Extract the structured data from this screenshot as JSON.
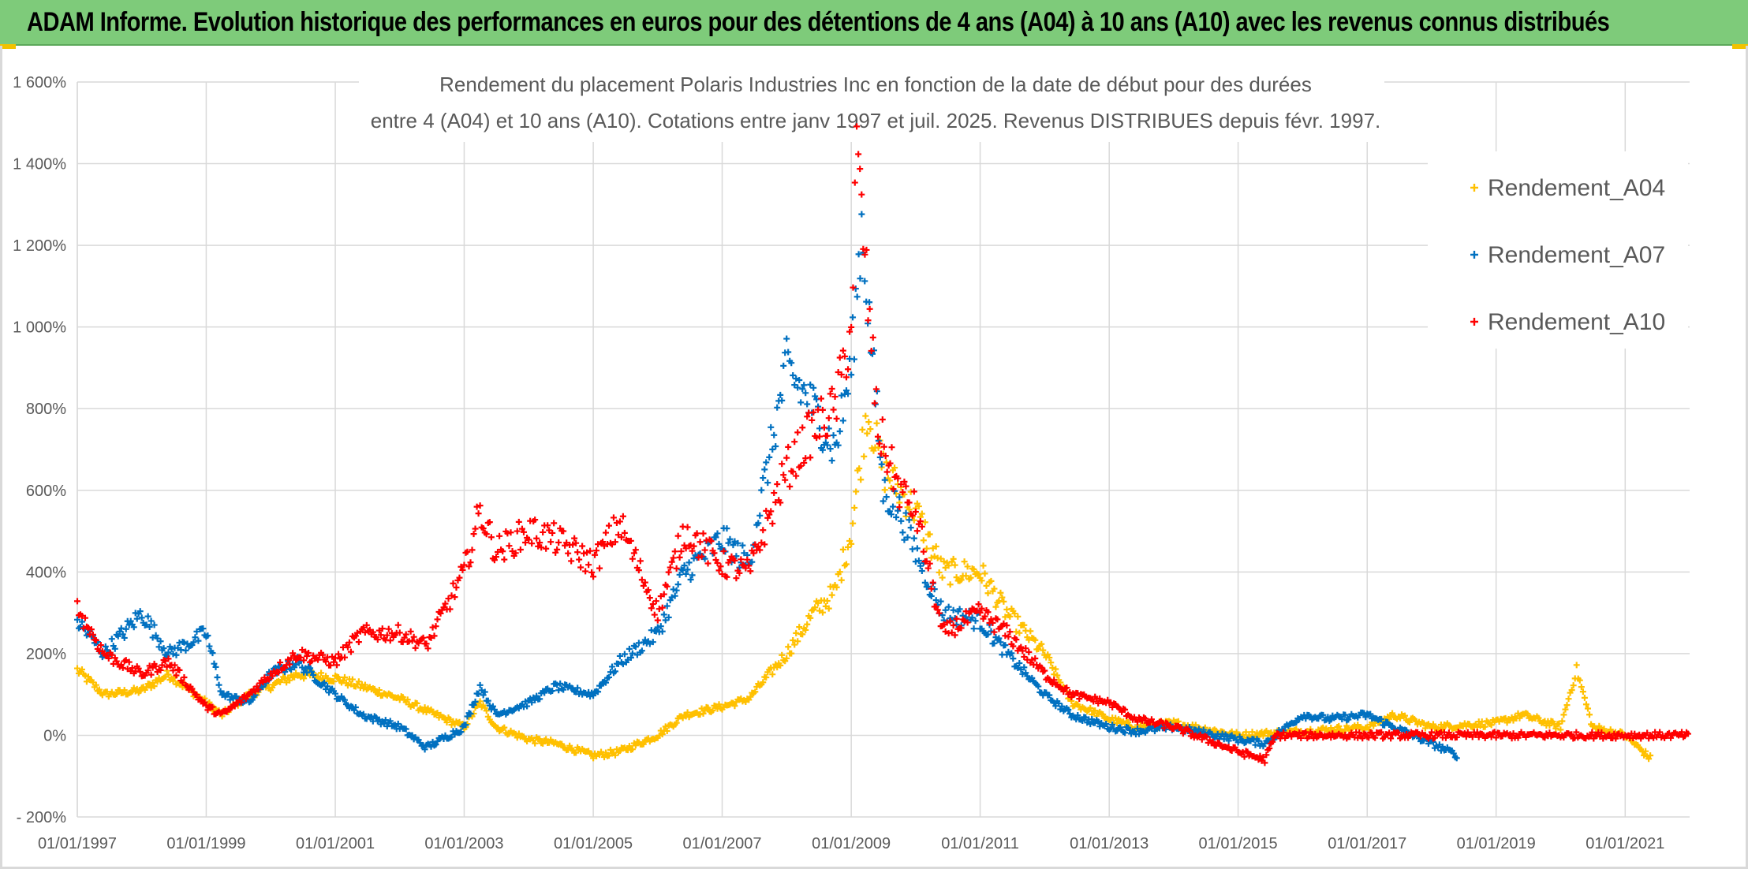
{
  "banner": {
    "title": "ADAM Informe. Evolution historique des performances en euros pour des détentions de 4 ans (A04) à 10 ans (A10) avec les revenus connus distribués"
  },
  "colors": {
    "banner_bg": "#7ecb7a",
    "A04": "#ffc000",
    "A07": "#0070c0",
    "A10": "#ff0000",
    "grid": "#d9d9d9",
    "text": "#595959"
  },
  "chart_data": {
    "type": "scatter",
    "title_line1": "Rendement du placement Polaris Industries Inc en fonction de la date de début pour des durées",
    "title_line2": "entre 4 (A04) et 10 ans (A10). Cotations entre janv 1997 et juil. 2025. Revenus DISTRIBUES depuis févr. 1997.",
    "marker": "+",
    "x_axis": {
      "type": "date",
      "min": "1997-01-01",
      "max": "2022-01-01",
      "tick_labels": [
        "01/01/1997",
        "01/01/1999",
        "01/01/2001",
        "01/01/2003",
        "01/01/2005",
        "01/01/2007",
        "01/01/2009",
        "01/01/2011",
        "01/01/2013",
        "01/01/2015",
        "01/01/2017",
        "01/01/2019",
        "01/01/2021"
      ]
    },
    "y_axis": {
      "unit": "%",
      "min": -200,
      "max": 1600,
      "tick_labels": [
        "- 200%",
        "0%",
        "200%",
        "400%",
        "600%",
        "800%",
        "1 000%",
        "1 200%",
        "1 400%",
        "1 600%"
      ],
      "tick_values": [
        -200,
        0,
        200,
        400,
        600,
        800,
        1000,
        1200,
        1400,
        1600
      ]
    },
    "grid": true,
    "legend_position": "top-right",
    "series": [
      {
        "name": "Rendement_A04",
        "color": "#ffc000",
        "points": [
          [
            "1997-01-01",
            160
          ],
          [
            "1997-06-01",
            100
          ],
          [
            "1998-01-01",
            110
          ],
          [
            "1998-06-01",
            150
          ],
          [
            "1999-01-01",
            80
          ],
          [
            "1999-04-01",
            50
          ],
          [
            "1999-09-01",
            100
          ],
          [
            "2000-01-01",
            120
          ],
          [
            "2000-06-01",
            150
          ],
          [
            "2001-01-01",
            140
          ],
          [
            "2001-06-01",
            120
          ],
          [
            "2002-01-01",
            90
          ],
          [
            "2002-06-01",
            60
          ],
          [
            "2003-01-01",
            20
          ],
          [
            "2003-04-01",
            80
          ],
          [
            "2003-07-01",
            20
          ],
          [
            "2004-01-01",
            -10
          ],
          [
            "2004-06-01",
            -20
          ],
          [
            "2005-01-01",
            -50
          ],
          [
            "2005-06-01",
            -40
          ],
          [
            "2006-01-01",
            0
          ],
          [
            "2006-06-01",
            50
          ],
          [
            "2007-01-01",
            70
          ],
          [
            "2007-06-01",
            90
          ],
          [
            "2008-01-01",
            200
          ],
          [
            "2008-06-01",
            300
          ],
          [
            "2008-10-01",
            350
          ],
          [
            "2009-01-01",
            500
          ],
          [
            "2009-04-01",
            800
          ],
          [
            "2009-07-01",
            650
          ],
          [
            "2009-10-01",
            600
          ],
          [
            "2010-01-01",
            550
          ],
          [
            "2010-06-01",
            400
          ],
          [
            "2011-01-01",
            400
          ],
          [
            "2011-06-01",
            300
          ],
          [
            "2012-01-01",
            200
          ],
          [
            "2012-06-01",
            80
          ],
          [
            "2013-01-01",
            40
          ],
          [
            "2013-06-01",
            20
          ],
          [
            "2014-01-01",
            30
          ],
          [
            "2015-01-01",
            0
          ],
          [
            "2016-01-01",
            10
          ],
          [
            "2017-01-01",
            20
          ],
          [
            "2017-06-01",
            50
          ],
          [
            "2018-01-01",
            20
          ],
          [
            "2019-01-01",
            30
          ],
          [
            "2019-06-01",
            50
          ],
          [
            "2020-01-01",
            20
          ],
          [
            "2020-04-01",
            160
          ],
          [
            "2020-07-01",
            20
          ],
          [
            "2021-01-01",
            0
          ],
          [
            "2021-06-01",
            -60
          ]
        ]
      },
      {
        "name": "Rendement_A07",
        "color": "#0070c0",
        "points": [
          [
            "1997-01-01",
            280
          ],
          [
            "1997-06-01",
            200
          ],
          [
            "1998-01-01",
            300
          ],
          [
            "1998-06-01",
            200
          ],
          [
            "1999-01-01",
            250
          ],
          [
            "1999-04-01",
            100
          ],
          [
            "1999-09-01",
            80
          ],
          [
            "2000-01-01",
            150
          ],
          [
            "2000-06-01",
            180
          ],
          [
            "2001-01-01",
            100
          ],
          [
            "2001-06-01",
            50
          ],
          [
            "2002-01-01",
            20
          ],
          [
            "2002-06-01",
            -30
          ],
          [
            "2003-01-01",
            20
          ],
          [
            "2003-04-01",
            120
          ],
          [
            "2003-07-01",
            50
          ],
          [
            "2004-01-01",
            80
          ],
          [
            "2004-06-01",
            120
          ],
          [
            "2005-01-01",
            100
          ],
          [
            "2005-06-01",
            180
          ],
          [
            "2006-01-01",
            250
          ],
          [
            "2006-06-01",
            400
          ],
          [
            "2007-01-01",
            480
          ],
          [
            "2007-06-01",
            420
          ],
          [
            "2008-01-01",
            900
          ],
          [
            "2008-06-01",
            800
          ],
          [
            "2008-10-01",
            700
          ],
          [
            "2009-01-01",
            900
          ],
          [
            "2009-03-01",
            1250
          ],
          [
            "2009-07-01",
            600
          ],
          [
            "2009-10-01",
            550
          ],
          [
            "2010-01-01",
            450
          ],
          [
            "2010-06-01",
            300
          ],
          [
            "2011-01-01",
            280
          ],
          [
            "2011-06-01",
            200
          ],
          [
            "2012-01-01",
            100
          ],
          [
            "2012-06-01",
            50
          ],
          [
            "2013-01-01",
            20
          ],
          [
            "2013-06-01",
            10
          ],
          [
            "2014-01-01",
            20
          ],
          [
            "2015-01-01",
            -10
          ],
          [
            "2015-06-01",
            -20
          ],
          [
            "2016-01-01",
            50
          ],
          [
            "2016-06-01",
            40
          ],
          [
            "2017-01-01",
            50
          ],
          [
            "2017-06-01",
            20
          ],
          [
            "2018-01-01",
            -20
          ],
          [
            "2018-06-01",
            -50
          ]
        ]
      },
      {
        "name": "Rendement_A10",
        "color": "#ff0000",
        "points": [
          [
            "1997-01-01",
            310
          ],
          [
            "1997-06-01",
            200
          ],
          [
            "1998-01-01",
            150
          ],
          [
            "1998-06-01",
            180
          ],
          [
            "1999-01-01",
            70
          ],
          [
            "1999-04-01",
            50
          ],
          [
            "1999-09-01",
            100
          ],
          [
            "2000-01-01",
            150
          ],
          [
            "2000-06-01",
            200
          ],
          [
            "2001-01-01",
            180
          ],
          [
            "2001-06-01",
            250
          ],
          [
            "2002-01-01",
            250
          ],
          [
            "2002-06-01",
            220
          ],
          [
            "2003-01-01",
            400
          ],
          [
            "2003-04-01",
            550
          ],
          [
            "2003-07-01",
            450
          ],
          [
            "2004-01-01",
            500
          ],
          [
            "2004-06-01",
            480
          ],
          [
            "2005-01-01",
            420
          ],
          [
            "2005-06-01",
            520
          ],
          [
            "2006-01-01",
            300
          ],
          [
            "2006-06-01",
            500
          ],
          [
            "2007-01-01",
            420
          ],
          [
            "2007-06-01",
            400
          ],
          [
            "2008-01-01",
            650
          ],
          [
            "2008-06-01",
            750
          ],
          [
            "2008-10-01",
            800
          ],
          [
            "2009-01-01",
            1000
          ],
          [
            "2009-02-01",
            1430
          ],
          [
            "2009-06-01",
            750
          ],
          [
            "2009-10-01",
            600
          ],
          [
            "2010-01-01",
            550
          ],
          [
            "2010-06-01",
            250
          ],
          [
            "2011-01-01",
            300
          ],
          [
            "2011-06-01",
            250
          ],
          [
            "2012-01-01",
            150
          ],
          [
            "2012-06-01",
            100
          ],
          [
            "2013-01-01",
            80
          ],
          [
            "2013-06-01",
            40
          ],
          [
            "2014-01-01",
            20
          ],
          [
            "2015-01-01",
            -40
          ],
          [
            "2015-06-01",
            -60
          ],
          [
            "2015-08-01",
            0
          ],
          [
            "2016-01-01",
            0
          ],
          [
            "2017-01-01",
            0
          ],
          [
            "2018-01-01",
            0
          ],
          [
            "2019-01-01",
            0
          ],
          [
            "2020-01-01",
            0
          ],
          [
            "2021-01-01",
            0
          ],
          [
            "2022-01-01",
            0
          ]
        ]
      }
    ]
  }
}
